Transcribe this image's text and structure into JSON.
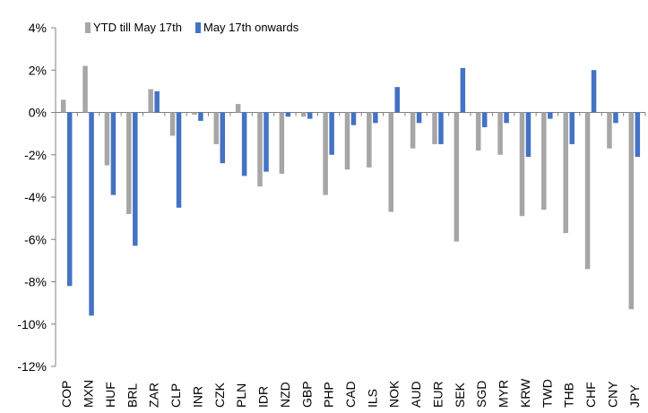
{
  "chart_data": {
    "type": "bar",
    "orientation": "vertical",
    "categories": [
      "COP",
      "MXN",
      "HUF",
      "BRL",
      "ZAR",
      "CLP",
      "INR",
      "CZK",
      "PLN",
      "IDR",
      "NZD",
      "GBP",
      "PHP",
      "CAD",
      "ILS",
      "NOK",
      "AUD",
      "EUR",
      "SEK",
      "SGD",
      "MYR",
      "KRW",
      "TWD",
      "THB",
      "CHF",
      "CNY",
      "JPY"
    ],
    "series": [
      {
        "name": "YTD till May 17th",
        "color": "#a6a6a6",
        "values": [
          0.6,
          2.2,
          -2.5,
          -4.8,
          1.1,
          -1.1,
          -0.1,
          -1.5,
          0.4,
          -3.5,
          -2.9,
          -0.2,
          -3.9,
          -2.7,
          -2.6,
          -4.7,
          -1.7,
          -1.5,
          -6.1,
          -1.8,
          -2.0,
          -4.9,
          -4.6,
          -5.7,
          -7.4,
          -1.7,
          -9.3
        ]
      },
      {
        "name": "May 17th onwards",
        "color": "#4472c4",
        "values": [
          -8.2,
          -9.6,
          -3.9,
          -6.3,
          1.0,
          -4.5,
          -0.4,
          -2.4,
          -3.0,
          -2.8,
          -0.2,
          -0.3,
          -2.0,
          -0.6,
          -0.5,
          1.2,
          -0.5,
          -1.5,
          2.1,
          -0.7,
          -0.5,
          -2.1,
          -0.3,
          -1.5,
          2.0,
          -0.5,
          -2.1
        ]
      }
    ],
    "y_ticks": [
      "4%",
      "2%",
      "0%",
      "-2%",
      "-4%",
      "-6%",
      "-8%",
      "-10%",
      "-12%"
    ],
    "ylim": [
      -12,
      4
    ],
    "ystep": 2,
    "y_unit": "%",
    "grid": false,
    "legend_position": "top-left",
    "x_label_rotation": "vertical"
  }
}
